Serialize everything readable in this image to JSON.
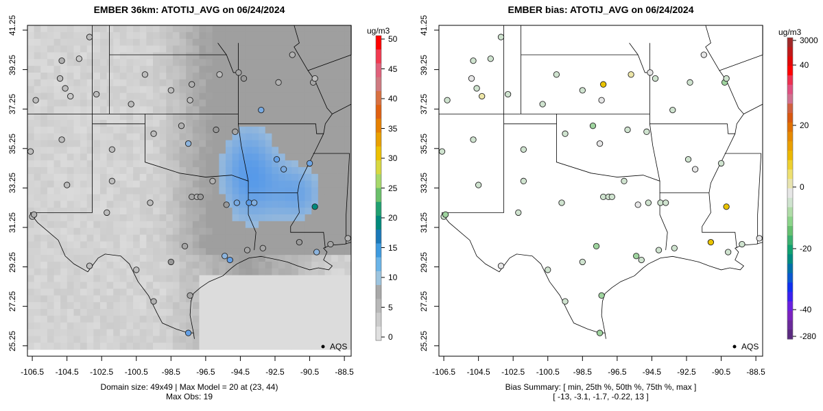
{
  "chart_data": [
    {
      "type": "heatmap",
      "title": "EMBER 36km: ATOTIJ_AVG on 06/24/2024",
      "xlabel_ticks": [
        "-106.5",
        "-104.5",
        "-102.5",
        "-100.5",
        "-98.5",
        "-96.5",
        "-94.5",
        "-92.5",
        "-90.5",
        "-88.5"
      ],
      "ylabel_ticks": [
        "41.25",
        "39.25",
        "37.25",
        "35.25",
        "33.25",
        "31.25",
        "29.25",
        "27.25",
        "25.25"
      ],
      "xlim": [
        -106.78,
        -88.1
      ],
      "ylim": [
        24.8,
        41.5
      ],
      "colorbar": {
        "unit": "ug/m3",
        "ticks": [
          "50",
          "45",
          "40",
          "35",
          "30",
          "25",
          "20",
          "15",
          "10",
          "5",
          "0"
        ],
        "range": [
          0,
          50
        ]
      },
      "legend": "AQS",
      "legend_position": "bottom-right",
      "footer": [
        "Domain size: 49x49 | Max Model = 20 at (23, 44)",
        "Max Obs: 19"
      ],
      "stations": [
        [
          -106.3,
          37.7,
          3
        ],
        [
          -104.8,
          39.7,
          4
        ],
        [
          -104.9,
          38.8,
          3
        ],
        [
          -104.6,
          38.3,
          3
        ],
        [
          -103.8,
          39.8,
          2
        ],
        [
          -103.2,
          40.9,
          3
        ],
        [
          -104.3,
          37.9,
          2
        ],
        [
          -102.8,
          38.0,
          3
        ],
        [
          -100.8,
          37.5,
          3
        ],
        [
          -100.0,
          39.0,
          3
        ],
        [
          -98.5,
          38.2,
          3
        ],
        [
          -97.4,
          37.7,
          3
        ],
        [
          -97.3,
          38.5,
          4
        ],
        [
          -95.7,
          39.0,
          3
        ],
        [
          -94.6,
          39.1,
          5
        ],
        [
          -94.3,
          38.8,
          6
        ],
        [
          -93.3,
          37.2,
          9
        ],
        [
          -92.3,
          38.6,
          4
        ],
        [
          -90.3,
          38.6,
          5
        ],
        [
          -90.2,
          38.8,
          3
        ],
        [
          -91.5,
          40.0,
          4
        ],
        [
          -94.8,
          36.1,
          5
        ],
        [
          -95.9,
          36.2,
          6
        ],
        [
          -97.5,
          35.5,
          7
        ],
        [
          -97.9,
          36.4,
          4
        ],
        [
          -99.5,
          36.0,
          3
        ],
        [
          -101.9,
          35.2,
          3
        ],
        [
          -104.8,
          35.7,
          3
        ],
        [
          -106.6,
          35.1,
          3
        ],
        [
          -106.5,
          31.8,
          3
        ],
        [
          -106.4,
          31.9,
          4
        ],
        [
          -102.2,
          32.0,
          3
        ],
        [
          -101.9,
          33.6,
          3
        ],
        [
          -99.7,
          32.5,
          3
        ],
        [
          -97.3,
          32.8,
          5
        ],
        [
          -97.0,
          32.8,
          4
        ],
        [
          -96.8,
          32.8,
          6
        ],
        [
          -96.1,
          33.6,
          4
        ],
        [
          -95.3,
          32.4,
          6
        ],
        [
          -94.7,
          32.5,
          9
        ],
        [
          -94.0,
          32.5,
          12
        ],
        [
          -93.7,
          32.5,
          8
        ],
        [
          -92.4,
          34.7,
          11
        ],
        [
          -92.0,
          34.2,
          9
        ],
        [
          -90.5,
          34.5,
          10
        ],
        [
          -90.2,
          32.3,
          19
        ],
        [
          -91.1,
          30.5,
          6
        ],
        [
          -90.1,
          30.0,
          7
        ],
        [
          -89.3,
          30.4,
          5
        ],
        [
          -88.3,
          30.7,
          4
        ],
        [
          -97.7,
          30.3,
          5
        ],
        [
          -98.5,
          29.5,
          6
        ],
        [
          -95.4,
          29.8,
          7
        ],
        [
          -95.1,
          29.6,
          11
        ],
        [
          -94.1,
          30.1,
          5
        ],
        [
          -93.2,
          30.2,
          5
        ],
        [
          -97.4,
          27.8,
          5
        ],
        [
          -97.5,
          25.9,
          11
        ],
        [
          -99.5,
          27.5,
          4
        ],
        [
          -100.5,
          29.1,
          3
        ],
        [
          -104.5,
          33.4,
          3
        ],
        [
          -103.2,
          29.3,
          3
        ]
      ]
    },
    {
      "type": "scatter",
      "title": "EMBER bias: ATOTIJ_AVG on 06/24/2024",
      "xlabel_ticks": [
        "-106.5",
        "-104.5",
        "-102.5",
        "-100.5",
        "-98.5",
        "-96.5",
        "-94.5",
        "-92.5",
        "-90.5",
        "-88.5"
      ],
      "ylabel_ticks": [
        "41.25",
        "39.25",
        "37.25",
        "35.25",
        "33.25",
        "31.25",
        "29.25",
        "27.25",
        "25.25"
      ],
      "colorbar": {
        "unit": "ug/m3",
        "ticks": [
          "3000",
          "40",
          "20",
          "0",
          "-20",
          "-40",
          "-280"
        ]
      },
      "legend": "AQS",
      "legend_position": "bottom-right",
      "footer": [
        "Bias Summary: [ min, 25th %, 50th %, 75th %, max ]",
        "[ -13,   -3.1,   -1.7,   -0.22,   13 ]"
      ],
      "bias_summary": {
        "min": -13,
        "p25": -3.1,
        "p50": -1.7,
        "p75": -0.22,
        "max": 13
      }
    }
  ],
  "colors": {
    "bias_pos": "#e8a000",
    "bias_neg": "#6cc46c",
    "neutral": "#e6e6e6"
  }
}
